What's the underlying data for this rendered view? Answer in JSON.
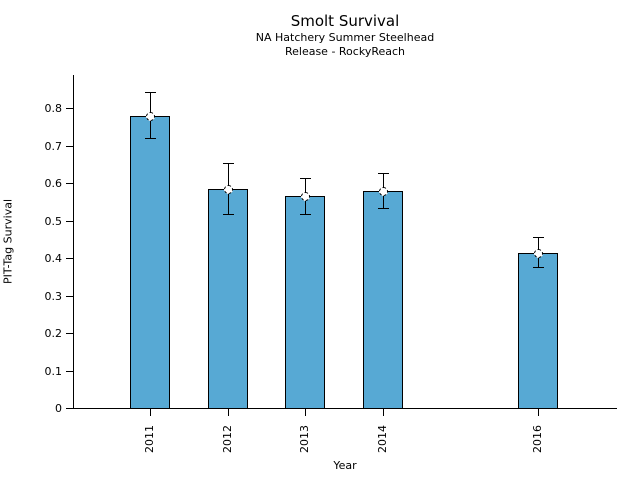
{
  "chart_data": {
    "type": "bar",
    "title": "Smolt Survival",
    "subtitle1": "NA Hatchery Summer Steelhead",
    "subtitle2": "Release - RockyReach",
    "xlabel": "Year",
    "ylabel": "PIT-Tag Survival",
    "categories": [
      2011,
      2012,
      2013,
      2014,
      2016
    ],
    "values": [
      0.78,
      0.585,
      0.567,
      0.58,
      0.415
    ],
    "error_up": [
      0.063,
      0.068,
      0.048,
      0.048,
      0.042
    ],
    "error_down": [
      0.06,
      0.067,
      0.048,
      0.046,
      0.038
    ],
    "y_ticks": [
      0,
      0.1,
      0.2,
      0.3,
      0.4,
      0.5,
      0.6,
      0.7,
      0.8
    ],
    "y_tick_labels": [
      "0",
      "0.1",
      "0.2",
      "0.3",
      "0.4",
      "0.5",
      "0.6",
      "0.7",
      "0.8"
    ],
    "x_tick_labels": [
      "2011",
      "2012",
      "2013",
      "2014",
      "2016"
    ],
    "ylim": [
      0,
      0.89
    ],
    "xlim": [
      2010,
      2017
    ],
    "grid": false,
    "legend": "none",
    "bar_color": "#57A9D4",
    "bar_edge_color": "#000000",
    "error_color": "#000000",
    "marker": "open-circle-dashed"
  }
}
